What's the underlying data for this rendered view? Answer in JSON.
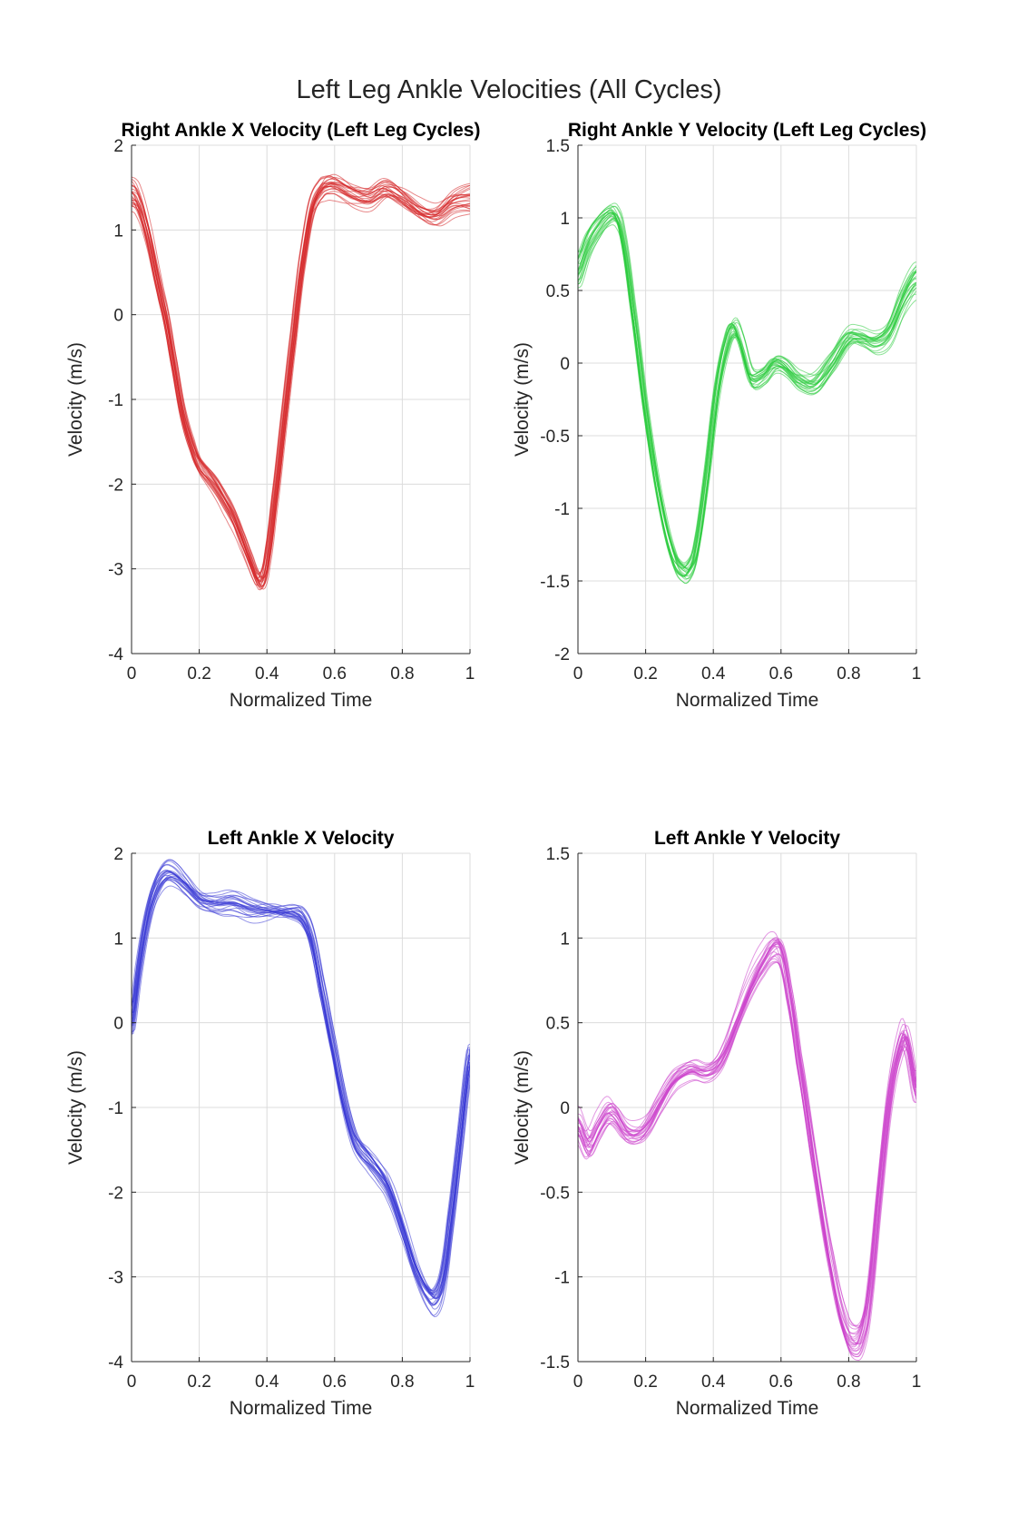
{
  "figure": {
    "title": "Left Leg Ankle Velocities (All Cycles)"
  },
  "chart_data": [
    {
      "type": "line",
      "title": "Right Ankle X Velocity (Left Leg Cycles)",
      "xlabel": "Normalized Time",
      "ylabel": "Velocity (m/s)",
      "xlim": [
        0,
        1
      ],
      "ylim": [
        -4,
        2
      ],
      "xticks": [
        0,
        0.2,
        0.4,
        0.6,
        0.8,
        1
      ],
      "yticks": [
        -4,
        -3,
        -2,
        -1,
        0,
        1,
        2
      ],
      "xtick_labels": [
        "0",
        "0.2",
        "0.4",
        "0.6",
        "0.8",
        "1"
      ],
      "ytick_labels": [
        "-4",
        "-3",
        "-2",
        "-1",
        "0",
        "1",
        "2"
      ],
      "grid": true,
      "color": "#d62728",
      "cycle_count": 24,
      "mean_curve": {
        "x": [
          0,
          0.02,
          0.05,
          0.08,
          0.1,
          0.12,
          0.15,
          0.18,
          0.2,
          0.22,
          0.25,
          0.28,
          0.3,
          0.32,
          0.35,
          0.37,
          0.38,
          0.39,
          0.4,
          0.42,
          0.45,
          0.48,
          0.5,
          0.53,
          0.56,
          0.58,
          0.6,
          0.65,
          0.7,
          0.75,
          0.8,
          0.85,
          0.9,
          0.95,
          1
        ],
        "y": [
          1.4,
          1.3,
          0.9,
          0.35,
          0.0,
          -0.45,
          -1.1,
          -1.5,
          -1.7,
          -1.8,
          -1.95,
          -2.15,
          -2.3,
          -2.5,
          -2.8,
          -3.0,
          -3.05,
          -3.0,
          -2.8,
          -2.2,
          -1.2,
          -0.2,
          0.5,
          1.2,
          1.45,
          1.5,
          1.5,
          1.4,
          1.35,
          1.45,
          1.35,
          1.2,
          1.15,
          1.3,
          1.35
        ]
      }
    },
    {
      "type": "line",
      "title": "Right Ankle Y Velocity (Left Leg Cycles)",
      "xlabel": "Normalized Time",
      "ylabel": "Velocity (m/s)",
      "xlim": [
        0,
        1
      ],
      "ylim": [
        -2,
        1.5
      ],
      "xticks": [
        0,
        0.2,
        0.4,
        0.6,
        0.8,
        1
      ],
      "yticks": [
        -2,
        -1.5,
        -1,
        -0.5,
        0,
        0.5,
        1,
        1.5
      ],
      "xtick_labels": [
        "0",
        "0.2",
        "0.4",
        "0.6",
        "0.8",
        "1"
      ],
      "ytick_labels": [
        "-2",
        "-1.5",
        "-1",
        "-0.5",
        "0",
        "0.5",
        "1",
        "1.5"
      ],
      "grid": true,
      "color": "#2ecc40",
      "cycle_count": 24,
      "mean_curve": {
        "x": [
          0,
          0.03,
          0.06,
          0.09,
          0.11,
          0.13,
          0.16,
          0.2,
          0.24,
          0.28,
          0.31,
          0.33,
          0.35,
          0.38,
          0.41,
          0.44,
          0.46,
          0.48,
          0.51,
          0.55,
          0.58,
          0.61,
          0.65,
          0.7,
          0.75,
          0.8,
          0.84,
          0.88,
          0.92,
          0.96,
          1
        ],
        "y": [
          0.65,
          0.85,
          0.97,
          1.05,
          1.05,
          0.9,
          0.4,
          -0.35,
          -0.95,
          -1.35,
          -1.47,
          -1.45,
          -1.3,
          -0.8,
          -0.2,
          0.15,
          0.25,
          0.15,
          -0.1,
          -0.08,
          0.0,
          -0.02,
          -0.12,
          -0.15,
          0.0,
          0.18,
          0.18,
          0.15,
          0.22,
          0.45,
          0.6
        ]
      }
    },
    {
      "type": "line",
      "title": "Left Ankle X Velocity",
      "xlabel": "Normalized Time",
      "ylabel": "Velocity (m/s)",
      "xlim": [
        0,
        1
      ],
      "ylim": [
        -4,
        2
      ],
      "xticks": [
        0,
        0.2,
        0.4,
        0.6,
        0.8,
        1
      ],
      "yticks": [
        -4,
        -3,
        -2,
        -1,
        0,
        1,
        2
      ],
      "xtick_labels": [
        "0",
        "0.2",
        "0.4",
        "0.6",
        "0.8",
        "1"
      ],
      "ytick_labels": [
        "-4",
        "-3",
        "-2",
        "-1",
        "0",
        "1",
        "2"
      ],
      "grid": true,
      "color": "#3a3ad6",
      "cycle_count": 24,
      "mean_curve": {
        "x": [
          0,
          0.02,
          0.04,
          0.06,
          0.08,
          0.1,
          0.12,
          0.15,
          0.2,
          0.25,
          0.3,
          0.35,
          0.4,
          0.45,
          0.5,
          0.53,
          0.56,
          0.6,
          0.63,
          0.66,
          0.7,
          0.73,
          0.76,
          0.8,
          0.84,
          0.88,
          0.9,
          0.92,
          0.94,
          0.97,
          1
        ],
        "y": [
          0.0,
          0.6,
          1.1,
          1.45,
          1.65,
          1.75,
          1.75,
          1.65,
          1.45,
          1.4,
          1.42,
          1.35,
          1.32,
          1.3,
          1.25,
          1.0,
          0.4,
          -0.4,
          -1.0,
          -1.4,
          -1.6,
          -1.75,
          -1.95,
          -2.4,
          -2.9,
          -3.2,
          -3.22,
          -3.0,
          -2.4,
          -1.4,
          -0.4
        ]
      }
    },
    {
      "type": "line",
      "title": "Left Ankle Y Velocity",
      "xlabel": "Normalized Time",
      "ylabel": "Velocity (m/s)",
      "xlim": [
        0,
        1
      ],
      "ylim": [
        -1.5,
        1.5
      ],
      "xticks": [
        0,
        0.2,
        0.4,
        0.6,
        0.8,
        1
      ],
      "yticks": [
        -1.5,
        -1,
        -0.5,
        0,
        0.5,
        1,
        1.5
      ],
      "xtick_labels": [
        "0",
        "0.2",
        "0.4",
        "0.6",
        "0.8",
        "1"
      ],
      "ytick_labels": [
        "-1.5",
        "-1",
        "-0.5",
        "0",
        "0.5",
        "1",
        "1.5"
      ],
      "grid": true,
      "color": "#cc44cc",
      "cycle_count": 24,
      "mean_curve": {
        "x": [
          0,
          0.03,
          0.06,
          0.09,
          0.11,
          0.14,
          0.17,
          0.2,
          0.24,
          0.28,
          0.31,
          0.34,
          0.37,
          0.4,
          0.43,
          0.47,
          0.51,
          0.55,
          0.58,
          0.6,
          0.62,
          0.65,
          0.7,
          0.75,
          0.79,
          0.82,
          0.84,
          0.86,
          0.89,
          0.92,
          0.95,
          0.97,
          1
        ],
        "y": [
          -0.1,
          -0.22,
          -0.12,
          -0.03,
          -0.05,
          -0.14,
          -0.16,
          -0.12,
          0.02,
          0.15,
          0.2,
          0.22,
          0.2,
          0.22,
          0.3,
          0.5,
          0.7,
          0.85,
          0.93,
          0.9,
          0.7,
          0.3,
          -0.35,
          -0.95,
          -1.3,
          -1.38,
          -1.32,
          -1.1,
          -0.5,
          0.05,
          0.35,
          0.4,
          0.1
        ]
      }
    }
  ]
}
